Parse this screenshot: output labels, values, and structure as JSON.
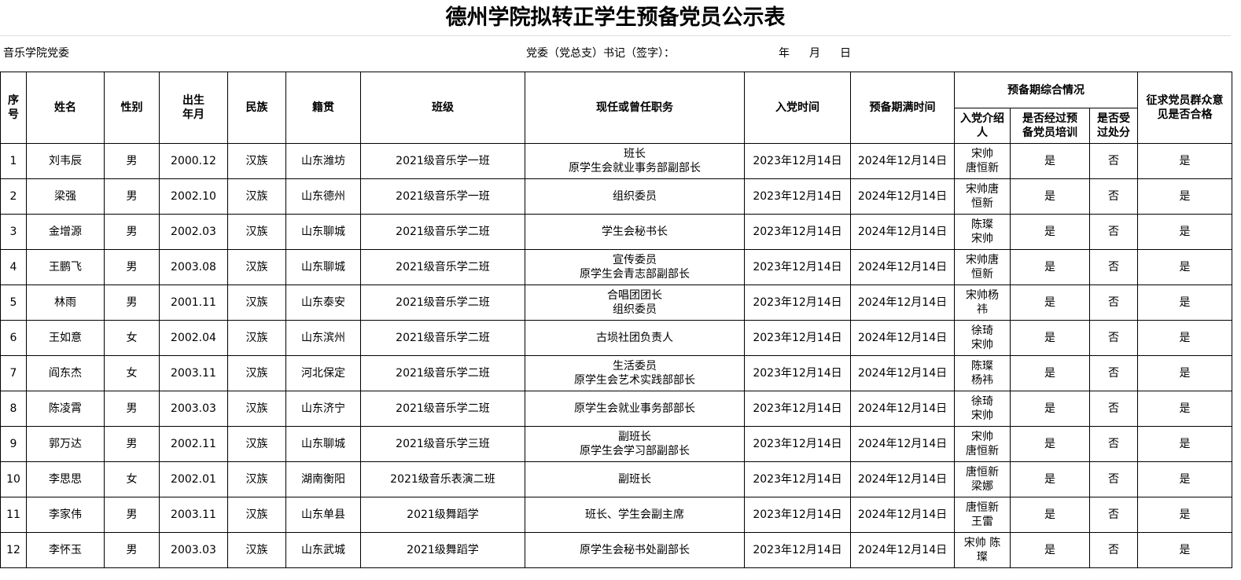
{
  "title": "德州学院拟转正学生预备党员公示表",
  "info": {
    "unit": "音乐学院党委",
    "secretary_label": "党委（党总支）书记（签字）：",
    "year": "年",
    "month": "月",
    "day": "日"
  },
  "headers": {
    "seq": "序\n号",
    "name": "姓名",
    "gender": "性别",
    "birth": "出生\n年月",
    "ethnicity": "民族",
    "origin": "籍贯",
    "class": "班级",
    "position": "现任或曾任职务",
    "join_date": "入党时间",
    "probation_end": "预备期满时间",
    "probation_summary": "预备期综合情况",
    "introducer": "入党介绍\n人",
    "trained": "是否经过预\n备党员培训",
    "punished": "是否受\n过处分",
    "opinion": "征求党员群众意\n见是否合格"
  },
  "rows": [
    {
      "seq": "1",
      "name": "刘韦辰",
      "gender": "男",
      "birth": "2000.12",
      "ethnicity": "汉族",
      "origin": "山东潍坊",
      "class": "2021级音乐学一班",
      "position": "班长\n原学生会就业事务部副部长",
      "join_date": "2023年12月14日",
      "probation_end": "2024年12月14日",
      "introducer": "宋帅\n唐恒新",
      "trained": "是",
      "punished": "否",
      "opinion": "是"
    },
    {
      "seq": "2",
      "name": "梁强",
      "gender": "男",
      "birth": "2002.10",
      "ethnicity": "汉族",
      "origin": "山东德州",
      "class": "2021级音乐学一班",
      "position": "组织委员",
      "join_date": "2023年12月14日",
      "probation_end": "2024年12月14日",
      "introducer": "宋帅唐\n恒新",
      "trained": "是",
      "punished": "否",
      "opinion": "是"
    },
    {
      "seq": "3",
      "name": "金增源",
      "gender": "男",
      "birth": "2002.03",
      "ethnicity": "汉族",
      "origin": "山东聊城",
      "class": "2021级音乐学二班",
      "position": "学生会秘书长",
      "join_date": "2023年12月14日",
      "probation_end": "2024年12月14日",
      "introducer": "陈璨\n宋帅",
      "trained": "是",
      "punished": "否",
      "opinion": "是"
    },
    {
      "seq": "4",
      "name": "王鹏飞",
      "gender": "男",
      "birth": "2003.08",
      "ethnicity": "汉族",
      "origin": "山东聊城",
      "class": "2021级音乐学二班",
      "position": "宣传委员\n原学生会青志部副部长",
      "join_date": "2023年12月14日",
      "probation_end": "2024年12月14日",
      "introducer": "宋帅唐\n恒新",
      "trained": "是",
      "punished": "否",
      "opinion": "是"
    },
    {
      "seq": "5",
      "name": "林雨",
      "gender": "男",
      "birth": "2001.11",
      "ethnicity": "汉族",
      "origin": "山东泰安",
      "class": "2021级音乐学二班",
      "position": "合唱团团长\n组织委员",
      "join_date": "2023年12月14日",
      "probation_end": "2024年12月14日",
      "introducer": "宋帅杨\n祎",
      "trained": "是",
      "punished": "否",
      "opinion": "是"
    },
    {
      "seq": "6",
      "name": "王如意",
      "gender": "女",
      "birth": "2002.04",
      "ethnicity": "汉族",
      "origin": "山东滨州",
      "class": "2021级音乐学二班",
      "position": "古埙社团负责人",
      "join_date": "2023年12月14日",
      "probation_end": "2024年12月14日",
      "introducer": "徐琦\n宋帅",
      "trained": "是",
      "punished": "否",
      "opinion": "是"
    },
    {
      "seq": "7",
      "name": "阎东杰",
      "gender": "女",
      "birth": "2003.11",
      "ethnicity": "汉族",
      "origin": "河北保定",
      "class": "2021级音乐学二班",
      "position": "生活委员\n原学生会艺术实践部部长",
      "join_date": "2023年12月14日",
      "probation_end": "2024年12月14日",
      "introducer": "陈璨\n杨祎",
      "trained": "是",
      "punished": "否",
      "opinion": "是"
    },
    {
      "seq": "8",
      "name": "陈凌霄",
      "gender": "男",
      "birth": "2003.03",
      "ethnicity": "汉族",
      "origin": "山东济宁",
      "class": "2021级音乐学二班",
      "position": "原学生会就业事务部部长",
      "join_date": "2023年12月14日",
      "probation_end": "2024年12月14日",
      "introducer": "徐琦\n宋帅",
      "trained": "是",
      "punished": "否",
      "opinion": "是"
    },
    {
      "seq": "9",
      "name": "郭万达",
      "gender": "男",
      "birth": "2002.11",
      "ethnicity": "汉族",
      "origin": "山东聊城",
      "class": "2021级音乐学三班",
      "position": "副班长\n原学生会学习部副部长",
      "join_date": "2023年12月14日",
      "probation_end": "2024年12月14日",
      "introducer": "宋帅\n唐恒新",
      "trained": "是",
      "punished": "否",
      "opinion": "是"
    },
    {
      "seq": "10",
      "name": "李思思",
      "gender": "女",
      "birth": "2002.01",
      "ethnicity": "汉族",
      "origin": "湖南衡阳",
      "class": "2021级音乐表演二班",
      "position": "副班长",
      "join_date": "2023年12月14日",
      "probation_end": "2024年12月14日",
      "introducer": "唐恒新\n梁娜",
      "trained": "是",
      "punished": "否",
      "opinion": "是"
    },
    {
      "seq": "11",
      "name": "李家伟",
      "gender": "男",
      "birth": "2003.11",
      "ethnicity": "汉族",
      "origin": "山东单县",
      "class": "2021级舞蹈学",
      "position": "班长、学生会副主席",
      "join_date": "2023年12月14日",
      "probation_end": "2024年12月14日",
      "introducer": "唐恒新\n王雷",
      "trained": "是",
      "punished": "否",
      "opinion": "是"
    },
    {
      "seq": "12",
      "name": "李怀玉",
      "gender": "男",
      "birth": "2003.03",
      "ethnicity": "汉族",
      "origin": "山东武城",
      "class": "2021级舞蹈学",
      "position": "原学生会秘书处副部长",
      "join_date": "2023年12月14日",
      "probation_end": "2024年12月14日",
      "introducer": "宋帅  陈\n璨",
      "trained": "是",
      "punished": "否",
      "opinion": "是"
    }
  ]
}
